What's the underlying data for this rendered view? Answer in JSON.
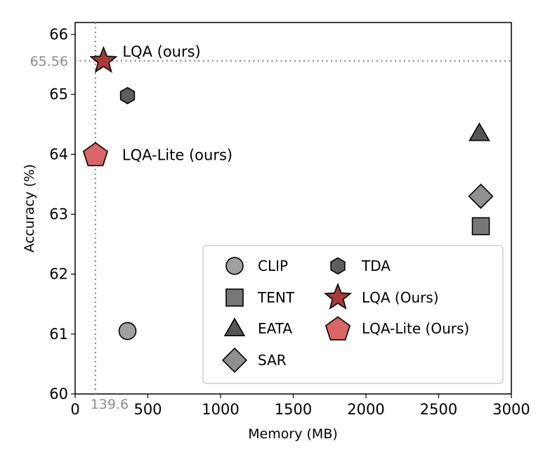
{
  "chart_data": {
    "type": "scatter",
    "xlabel": "Memory (MB)",
    "ylabel": "Accuracy (%)",
    "xlim": [
      0,
      3000
    ],
    "ylim": [
      60,
      66.2
    ],
    "xticks": [
      0,
      500,
      1000,
      1500,
      2000,
      2500,
      3000
    ],
    "yticks": [
      60,
      61,
      62,
      63,
      64,
      65,
      66
    ],
    "reference_lines": {
      "x": 139.6,
      "y": 65.56,
      "x_label": "139.6",
      "y_label": "65.56"
    },
    "series": [
      {
        "name": "CLIP",
        "marker": "circle",
        "color": "#a0a0a0",
        "x": 360,
        "y": 61.05
      },
      {
        "name": "TENT",
        "marker": "square",
        "color": "#777777",
        "x": 2790,
        "y": 62.8
      },
      {
        "name": "EATA",
        "marker": "triangle",
        "color": "#555555",
        "x": 2780,
        "y": 64.35
      },
      {
        "name": "SAR",
        "marker": "diamond",
        "color": "#909090",
        "x": 2790,
        "y": 63.3
      },
      {
        "name": "TDA",
        "marker": "hexagon",
        "color": "#5e5e5e",
        "x": 360,
        "y": 64.98
      },
      {
        "name": "LQA (Ours)",
        "marker": "star",
        "color": "#a83a3a",
        "x": 195,
        "y": 65.56
      },
      {
        "name": "LQA-Lite (Ours)",
        "marker": "pentagon",
        "color": "#d96566",
        "x": 139.6,
        "y": 64.0
      }
    ],
    "annotations": [
      {
        "text": "LQA (ours)",
        "series": "LQA (Ours)"
      },
      {
        "text": "LQA-Lite (ours)",
        "series": "LQA-Lite (Ours)"
      }
    ],
    "legend": {
      "placement": "lower-right",
      "columns": [
        [
          "CLIP",
          "TENT",
          "EATA",
          "SAR"
        ],
        [
          "TDA",
          "LQA (Ours)",
          "LQA-Lite (Ours)"
        ]
      ]
    }
  }
}
